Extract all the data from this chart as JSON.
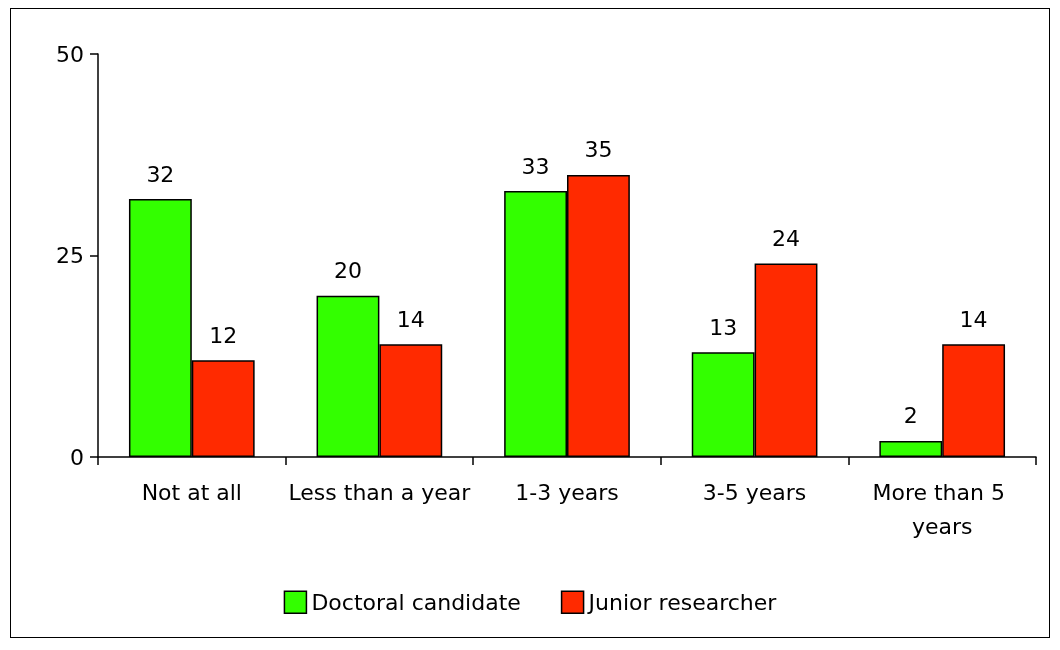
{
  "chart_data": {
    "type": "bar",
    "categories": [
      "Not at all",
      "Less than a year",
      "1-3 years",
      "3-5 years",
      "More than 5 years"
    ],
    "series": [
      {
        "name": "Doctoral candidate",
        "color": "#33ff00",
        "values": [
          32,
          20,
          33,
          13,
          2
        ]
      },
      {
        "name": "Junior researcher",
        "color": "#ff2a00",
        "values": [
          12,
          14,
          35,
          24,
          14
        ]
      }
    ],
    "ylim": [
      0,
      50
    ],
    "yticks": [
      0,
      25,
      50
    ],
    "grid": false,
    "legend": "bottom",
    "data_labels": true
  }
}
